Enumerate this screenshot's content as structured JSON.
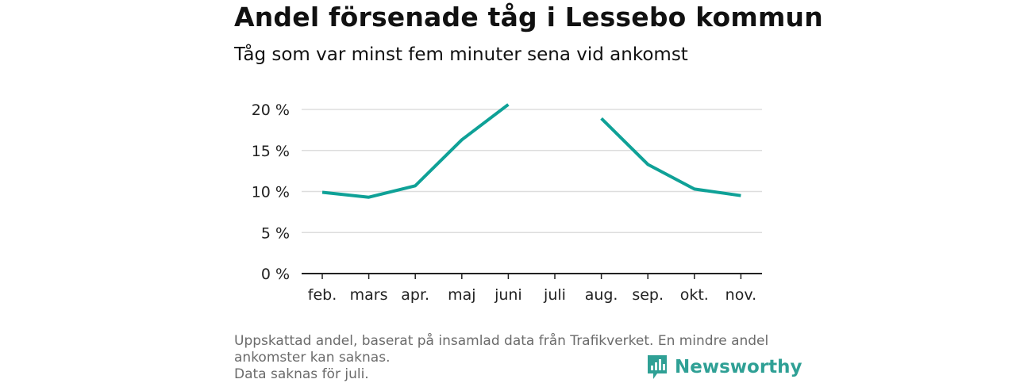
{
  "header": {
    "title": "Andel försenade tåg i Lessebo kommun",
    "subtitle": "Tåg som var minst fem minuter sena vid ankomst"
  },
  "chart_data": {
    "type": "line",
    "categories": [
      "feb.",
      "mars",
      "apr.",
      "maj",
      "juni",
      "juli",
      "aug.",
      "sep.",
      "okt.",
      "nov."
    ],
    "series": [
      {
        "values": [
          9.9,
          9.3,
          10.7,
          16.3,
          20.6,
          null,
          18.9,
          13.3,
          10.3,
          9.5
        ]
      }
    ],
    "ylim": [
      0,
      20
    ],
    "yticks": [
      0,
      5,
      10,
      15,
      20
    ],
    "ytick_labels": [
      "0 %",
      "5 %",
      "10 %",
      "15 %",
      "20 %"
    ],
    "grid": "horizontal",
    "line_color": "#0fa197",
    "grid_color": "#dddddd",
    "axis_color": "#222222"
  },
  "footer": {
    "note_line1": "Uppskattad andel, baserat på insamlad data från Trafikverket. En mindre andel",
    "note_line2": "ankomster kan saknas.",
    "note_line3": "Data saknas för juli."
  },
  "brand": {
    "name": "Newsworthy",
    "color": "#2fa095",
    "icon": "bar-chart-speech-bubble-icon"
  }
}
